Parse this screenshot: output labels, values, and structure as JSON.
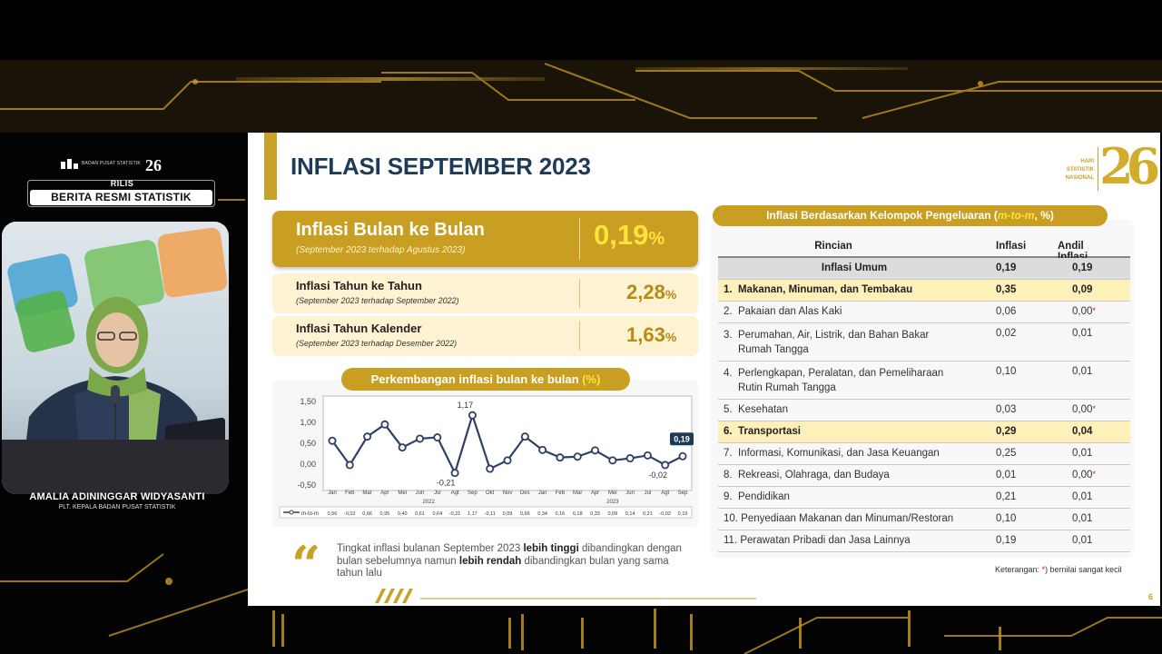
{
  "broadcast": {
    "logo_text": "BADAN PUSAT STATISTIK",
    "logo_anniversary": "26",
    "rilis_label": "RILIS",
    "rilis_title": "BERITA RESMI STATISTIK",
    "presenter_name": "AMALIA ADININGGAR WIDYASANTI",
    "presenter_title": "PLT. KEPALA BADAN PUSAT STATISTIK"
  },
  "slide": {
    "title": "INFLASI SEPTEMBER 2023",
    "logo_lines": [
      "HARI",
      "STATISTIK",
      "NASIONAL"
    ],
    "logo_number": "26",
    "page_number": "6",
    "colors": {
      "gold": "#c89f22",
      "navy": "#1f3a56",
      "highlight": "#fdf0b8",
      "value_yellow": "#ffe23a"
    }
  },
  "cards": {
    "mom": {
      "title": "Inflasi Bulan ke Bulan",
      "subtitle": "(September 2023 terhadap Agustus 2023)",
      "value": "0,19",
      "unit": "%"
    },
    "yoy": {
      "title": "Inflasi Tahun ke Tahun",
      "subtitle": "(September 2023 terhadap September 2022)",
      "value": "2,28",
      "unit": "%"
    },
    "ytd": {
      "title": "Inflasi Tahun Kalender",
      "subtitle": "(September 2023 terhadap Desember 2022)",
      "value": "1,63",
      "unit": "%"
    }
  },
  "chart_title": {
    "text": "Perkembangan inflasi bulan ke bulan",
    "unit": "(%)"
  },
  "chart_data": {
    "type": "line",
    "title": "Perkembangan inflasi bulan ke bulan (%)",
    "xlabel": "",
    "ylabel": "",
    "ylim": [
      -0.5,
      1.5
    ],
    "yticks": [
      "1,50",
      "1,00",
      "0,50",
      "0,00",
      "-0,50"
    ],
    "categories": [
      "Jan",
      "Feb",
      "Mar",
      "Apr",
      "Mei",
      "Jun",
      "Jul",
      "Agt",
      "Sep",
      "Okt",
      "Nov",
      "Des",
      "Jan",
      "Feb",
      "Mar",
      "Apr",
      "Mei",
      "Jun",
      "Jul",
      "Agt",
      "Sep"
    ],
    "year_labels": [
      "2022",
      "2023"
    ],
    "series": [
      {
        "name": "m-to-m",
        "values": [
          0.56,
          -0.02,
          0.66,
          0.95,
          0.4,
          0.61,
          0.64,
          -0.21,
          1.17,
          -0.11,
          0.09,
          0.66,
          0.34,
          0.16,
          0.18,
          0.33,
          0.09,
          0.14,
          0.21,
          -0.02,
          0.19
        ],
        "table_labels": [
          "0,56",
          "-0,02",
          "0,66",
          "0,95",
          "0,40",
          "0,61",
          "0,64",
          "-0,21",
          "1,17",
          "-0,11",
          "0,09",
          "0,66",
          "0,34",
          "0,16",
          "0,18",
          "0,33",
          "0,09",
          "0,14",
          "0,21",
          "-0,02",
          "0,19"
        ]
      }
    ],
    "annotations": [
      {
        "index": 8,
        "text": "1,17"
      },
      {
        "index": 7,
        "text": "-0,21"
      },
      {
        "index": 19,
        "text": "-0,02"
      },
      {
        "index": 20,
        "text": "0,19",
        "boxed": true
      }
    ],
    "grid": false,
    "legend": "bottom-left"
  },
  "quote": {
    "part1": "Tingkat inflasi bulanan September 2023 ",
    "bold1": "lebih tinggi",
    "part2": " dibandingkan dengan bulan sebelumnya namun ",
    "bold2": "lebih rendah",
    "part3": " dibandingkan bulan yang sama tahun lalu"
  },
  "table": {
    "title": "Inflasi Berdasarkan Kelompok Pengeluaran (",
    "title_mtm": "m-to-m",
    "title_end": ", %)",
    "headers": [
      "Rincian",
      "Inflasi",
      "Andil Inflasi"
    ],
    "umum": {
      "label": "Inflasi Umum",
      "inflasi": "0,19",
      "andil": "0,19"
    },
    "rows": [
      {
        "label": "1.  Makanan, Minuman, dan Tembakau",
        "inflasi": "0,35",
        "andil": "0,09",
        "highlight": true
      },
      {
        "label": "2.  Pakaian dan Alas Kaki",
        "inflasi": "0,06",
        "andil": "0,00",
        "star": true
      },
      {
        "label": "3.  Perumahan, Air, Listrik, dan Bahan Bakar",
        "label2": "     Rumah Tangga",
        "inflasi": "0,02",
        "andil": "0,01"
      },
      {
        "label": "4.  Perlengkapan, Peralatan, dan Pemeliharaan",
        "label2": "     Rutin Rumah Tangga",
        "inflasi": "0,10",
        "andil": "0,01"
      },
      {
        "label": "5.  Kesehatan",
        "inflasi": "0,03",
        "andil": "0,00",
        "star": true
      },
      {
        "label": "6.  Transportasi",
        "inflasi": "0,29",
        "andil": "0,04",
        "highlight": true
      },
      {
        "label": "7.  Informasi, Komunikasi, dan Jasa Keuangan",
        "inflasi": "0,25",
        "andil": "0,01"
      },
      {
        "label": "8.  Rekreasi, Olahraga, dan Budaya",
        "inflasi": "0,01",
        "andil": "0,00",
        "star": true
      },
      {
        "label": "9.  Pendidikan",
        "inflasi": "0,21",
        "andil": "0,01"
      },
      {
        "label": "10. Penyediaan Makanan dan Minuman/Restoran",
        "inflasi": "0,10",
        "andil": "0,01"
      },
      {
        "label": "11. Perawatan Pribadi dan Jasa Lainnya",
        "inflasi": "0,19",
        "andil": "0,01"
      }
    ],
    "note_prefix": "Keterangan: ",
    "note_star": "*",
    "note_text": ") bernilai sangat kecil"
  }
}
